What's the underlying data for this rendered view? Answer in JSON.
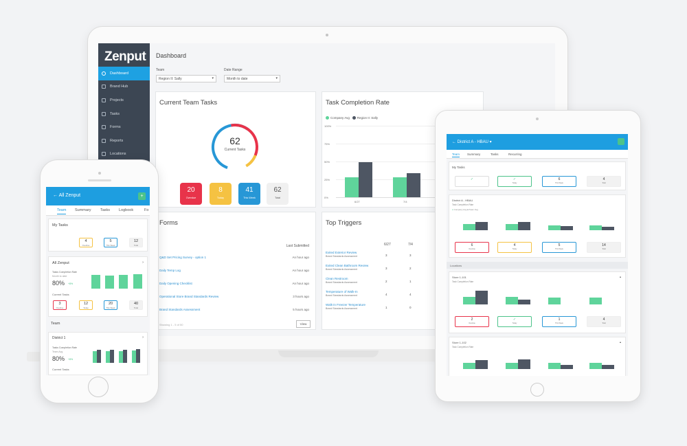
{
  "colors": {
    "accent": "#1ea1e2",
    "sidebar": "#3c4653",
    "green": "#5fd49b",
    "dark_bar": "#4e5663",
    "red": "#e8334a",
    "yellow": "#f5c242",
    "blue": "#2797d6",
    "grey_tile": "#f0f0f0"
  },
  "laptop": {
    "logo": "Zenput",
    "sidebar_items": [
      {
        "label": "Dashboard",
        "active": true
      },
      {
        "label": "Brand Hub"
      },
      {
        "label": "Projects"
      },
      {
        "label": "Tasks"
      },
      {
        "label": "Forms"
      },
      {
        "label": "Reports"
      },
      {
        "label": "Locations"
      }
    ],
    "page_title": "Dashboard",
    "filters": {
      "team_label": "Team",
      "team_value": "Region II: Sally",
      "date_label": "Date Range",
      "date_value": "Month to date"
    },
    "current_team_tasks": {
      "title": "Current Team Tasks",
      "donut_value": "62",
      "donut_label": "Current Tasks",
      "tiles": [
        {
          "value": "20",
          "label": "Overdue"
        },
        {
          "value": "8",
          "label": "Today"
        },
        {
          "value": "41",
          "label": "This Week"
        },
        {
          "value": "62",
          "label": "Total"
        }
      ]
    },
    "task_completion_rate": {
      "title": "Task Completion Rate",
      "legend": [
        "Company Avg",
        "Region II: Sally"
      ],
      "y_ticks": [
        "100%",
        "75%",
        "50%",
        "25%",
        "0%"
      ],
      "x_ticks": [
        "6/27",
        "7/4"
      ]
    },
    "forms": {
      "title": "Forms",
      "column_header": "Last Submitted",
      "rows": [
        {
          "name": "Q&D Set Pricing Survey - option 1",
          "time": "An hour ago"
        },
        {
          "name": "Daily Temp Log",
          "time": "An hour ago"
        },
        {
          "name": "Daily Opening Checklist",
          "time": "An hour ago"
        },
        {
          "name": "Operational Store Brand Standards Review",
          "time": "3 hours ago"
        },
        {
          "name": "Brand Standards Assessment",
          "time": "5 hours ago"
        }
      ],
      "showing": "Showing 1 - 5 of 50",
      "view_button": "View"
    },
    "top_triggers": {
      "title": "Top Triggers",
      "columns": [
        "6/27",
        "7/4"
      ],
      "rows": [
        {
          "name": "Exited Exterior Review",
          "sub": "Brand Standards Assessment",
          "v1": "3",
          "v2": "3"
        },
        {
          "name": "Exited Clean Bathroom Review",
          "sub": "Brand Standards Assessment",
          "v1": "3",
          "v2": "2"
        },
        {
          "name": "Clean Restroom",
          "sub": "Brand Standards Assessment",
          "v1": "2",
          "v2": "1"
        },
        {
          "name": "Temperature of Walk-In",
          "sub": "Brand Standards Assessment",
          "v1": "4",
          "v2": "4"
        },
        {
          "name": "Walk-in Freezer Temperature",
          "sub": "Brand Standards Assessment",
          "v1": "1",
          "v2": "0"
        }
      ]
    }
  },
  "phone": {
    "header_title": "All Zenput",
    "tabs": [
      "Team",
      "Summary",
      "Tasks",
      "Logbook",
      "Fo"
    ],
    "my_tasks": {
      "title": "My Tasks",
      "tiles": [
        {
          "value": "4",
          "label": "Overdue"
        },
        {
          "value": "5",
          "label": "This Week"
        },
        {
          "value": "12",
          "label": "Total"
        }
      ]
    },
    "all_zenput": {
      "title": "All Zenput",
      "rate_label": "Tasks Completion Rate",
      "rate_sub": "Month to date",
      "pct": "80%",
      "delta": "+8%",
      "current_tasks_label": "Current Tasks",
      "tiles": [
        {
          "value": "3",
          "label": "Overdue"
        },
        {
          "value": "12",
          "label": "Today"
        },
        {
          "value": "20",
          "label": "This Week"
        },
        {
          "value": "40",
          "label": "Total"
        }
      ]
    },
    "team": {
      "title": "Team",
      "district_title": "District 1",
      "rate_label": "Tasks Completion Rate",
      "rate_sub": "Team Avg",
      "pct": "80%",
      "delta": "+8%",
      "current_tasks_label": "Current Tasks"
    }
  },
  "tablet": {
    "header_title": "District A - HBAU",
    "tabs": [
      "Team",
      "Summary",
      "Tasks",
      "Recurring"
    ],
    "my_tasks": {
      "title": "My Tasks",
      "tiles": [
        {
          "value": "✓",
          "label": ""
        },
        {
          "value": "✓",
          "label": "Today"
        },
        {
          "value": "6",
          "label": "This Week"
        },
        {
          "value": "4",
          "label": "Total"
        }
      ]
    },
    "district": {
      "title": "District A - HBAU",
      "sub": "Task Completion Rate",
      "legend": [
        "Company Avg",
        "Team Avg"
      ],
      "tiles": [
        {
          "value": "6",
          "label": "Overdue"
        },
        {
          "value": "4",
          "label": "Today"
        },
        {
          "value": "5",
          "label": "This Week"
        },
        {
          "value": "14",
          "label": "Total"
        }
      ]
    },
    "locations_label": "Locations",
    "store_101": {
      "title": "Store 1-101",
      "sub": "Task Completion Rate",
      "tiles": [
        {
          "value": "2",
          "label": "Overdue"
        },
        {
          "value": "✓",
          "label": "Today"
        },
        {
          "value": "1",
          "label": "This Week"
        },
        {
          "value": "4",
          "label": "Total"
        }
      ]
    },
    "store_102": {
      "title": "Store 1-102",
      "sub": "Task Completion Rate"
    }
  }
}
